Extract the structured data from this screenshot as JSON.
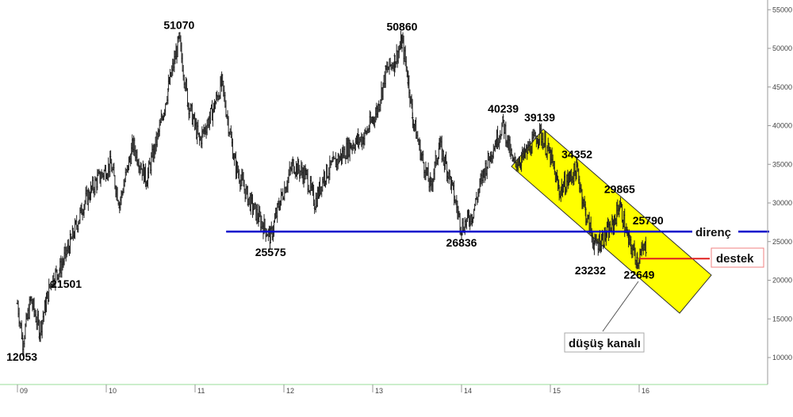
{
  "chart_data": {
    "type": "candlestick",
    "title": "",
    "xlabel": "",
    "ylabel": "",
    "x_ticks": [
      "09",
      "10",
      "11",
      "12",
      "13",
      "14",
      "15",
      "16"
    ],
    "y_ticks": [
      10000,
      15000,
      20000,
      25000,
      30000,
      35000,
      40000,
      45000,
      50000,
      55000
    ],
    "ylim": [
      5000,
      56000
    ],
    "xlim": [
      2009.0,
      2017.5
    ],
    "y_axis_position": "right",
    "grid": false,
    "key_levels": [
      {
        "label": "12053",
        "x": 2009.05,
        "y": 12053
      },
      {
        "label": "21501",
        "x": 2009.55,
        "y": 21501
      },
      {
        "label": "51070",
        "x": 2010.82,
        "y": 51070
      },
      {
        "label": "25575",
        "x": 2011.85,
        "y": 25575
      },
      {
        "label": "50860",
        "x": 2013.33,
        "y": 50860
      },
      {
        "label": "26836",
        "x": 2014.0,
        "y": 26836
      },
      {
        "label": "40239",
        "x": 2014.47,
        "y": 40239
      },
      {
        "label": "39139",
        "x": 2014.88,
        "y": 39139
      },
      {
        "label": "34352",
        "x": 2015.3,
        "y": 34352
      },
      {
        "label": "29865",
        "x": 2015.78,
        "y": 29865
      },
      {
        "label": "25790",
        "x": 2016.1,
        "y": 25790
      },
      {
        "label": "23232",
        "x": 2015.45,
        "y": 23232
      },
      {
        "label": "22649",
        "x": 2016.0,
        "y": 22649
      }
    ],
    "price_path": [
      [
        2009.0,
        17000
      ],
      [
        2009.06,
        12053
      ],
      [
        2009.15,
        17500
      ],
      [
        2009.25,
        13500
      ],
      [
        2009.38,
        20000
      ],
      [
        2009.48,
        21501
      ],
      [
        2009.6,
        25000
      ],
      [
        2009.75,
        30000
      ],
      [
        2009.9,
        33000
      ],
      [
        2010.05,
        35000
      ],
      [
        2010.15,
        30000
      ],
      [
        2010.3,
        37500
      ],
      [
        2010.45,
        33000
      ],
      [
        2010.6,
        39500
      ],
      [
        2010.7,
        45000
      ],
      [
        2010.82,
        51070
      ],
      [
        2010.92,
        43000
      ],
      [
        2011.05,
        38000
      ],
      [
        2011.2,
        42000
      ],
      [
        2011.3,
        45500
      ],
      [
        2011.45,
        35000
      ],
      [
        2011.6,
        30500
      ],
      [
        2011.72,
        28000
      ],
      [
        2011.85,
        25575
      ],
      [
        2011.95,
        30000
      ],
      [
        2012.1,
        35000
      ],
      [
        2012.25,
        33500
      ],
      [
        2012.35,
        30000
      ],
      [
        2012.45,
        33500
      ],
      [
        2012.6,
        35500
      ],
      [
        2012.75,
        37500
      ],
      [
        2012.9,
        38500
      ],
      [
        2013.05,
        42000
      ],
      [
        2013.15,
        47000
      ],
      [
        2013.25,
        48500
      ],
      [
        2013.33,
        50860
      ],
      [
        2013.4,
        46000
      ],
      [
        2013.45,
        41000
      ],
      [
        2013.55,
        36000
      ],
      [
        2013.65,
        32000
      ],
      [
        2013.75,
        37500
      ],
      [
        2013.85,
        34000
      ],
      [
        2014.0,
        26836
      ],
      [
        2014.12,
        28500
      ],
      [
        2014.25,
        34000
      ],
      [
        2014.35,
        37000
      ],
      [
        2014.47,
        40239
      ],
      [
        2014.58,
        35000
      ],
      [
        2014.7,
        36000
      ],
      [
        2014.88,
        39139
      ],
      [
        2015.0,
        36000
      ],
      [
        2015.1,
        31500
      ],
      [
        2015.2,
        33000
      ],
      [
        2015.3,
        34352
      ],
      [
        2015.4,
        28500
      ],
      [
        2015.5,
        24500
      ],
      [
        2015.6,
        25500
      ],
      [
        2015.7,
        27000
      ],
      [
        2015.78,
        29865
      ],
      [
        2015.88,
        25000
      ],
      [
        2015.98,
        22649
      ],
      [
        2016.08,
        24500
      ]
    ],
    "annotations": {
      "resistance": {
        "label": "direnç",
        "y": 26300,
        "x_start": 2011.35
      },
      "support": {
        "label": "destek",
        "y": 22800,
        "x_start": 2016.0
      },
      "channel": {
        "label": "düşüş kanalı"
      }
    },
    "colors": {
      "price": "#222222",
      "resistance": "#0000cc",
      "support": "#e02020",
      "channel_fill": "#ffff00",
      "axis": "#888888",
      "x_axis_line": "#99dd99"
    }
  }
}
